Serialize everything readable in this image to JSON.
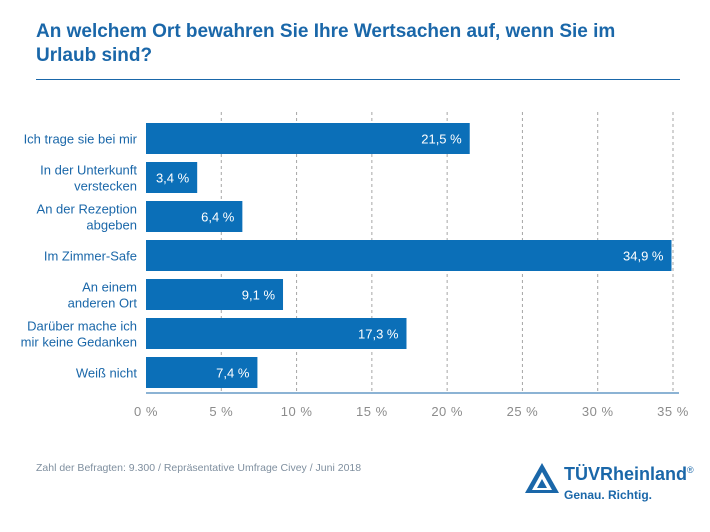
{
  "title": "An welchem Ort bewahren Sie Ihre Wertsachen auf, wenn Sie im Urlaub sind?",
  "footer": {
    "source": "Zahl der Befragten: 9.300 / Repräsentative Umfrage Civey / Juni 2018"
  },
  "logo": {
    "brand": "TÜVRheinland",
    "registered": "®",
    "tagline": "Genau. Richtig."
  },
  "colors": {
    "bar": "#0b6fb8",
    "text": "#1a67a9",
    "tick": "#8c8c8c",
    "grid": "#a6a6a6"
  },
  "chart_data": {
    "type": "bar",
    "orientation": "horizontal",
    "categories": [
      [
        "Ich trage sie bei mir"
      ],
      [
        "In der Unterkunft",
        "verstecken"
      ],
      [
        "An der Rezeption",
        "abgeben"
      ],
      [
        "Im Zimmer-Safe"
      ],
      [
        "An einem",
        "anderen Ort"
      ],
      [
        "Darüber mache ich",
        "mir keine Gedanken"
      ],
      [
        "Weiß nicht"
      ]
    ],
    "values": [
      21.5,
      3.4,
      6.4,
      34.9,
      9.1,
      17.3,
      7.4
    ],
    "value_labels": [
      "21,5 %",
      "3,4 %",
      "6,4 %",
      "34,9 %",
      "9,1 %",
      "17,3 %",
      "7,4 %"
    ],
    "xlim": [
      0,
      35
    ],
    "xticks": [
      0,
      5,
      10,
      15,
      20,
      25,
      30,
      35
    ],
    "xtick_labels": [
      "0 %",
      "5 %",
      "10 %",
      "15 %",
      "20 %",
      "25 %",
      "30 %",
      "35 %"
    ],
    "grid": true,
    "grid_style": "dashed vertical"
  }
}
